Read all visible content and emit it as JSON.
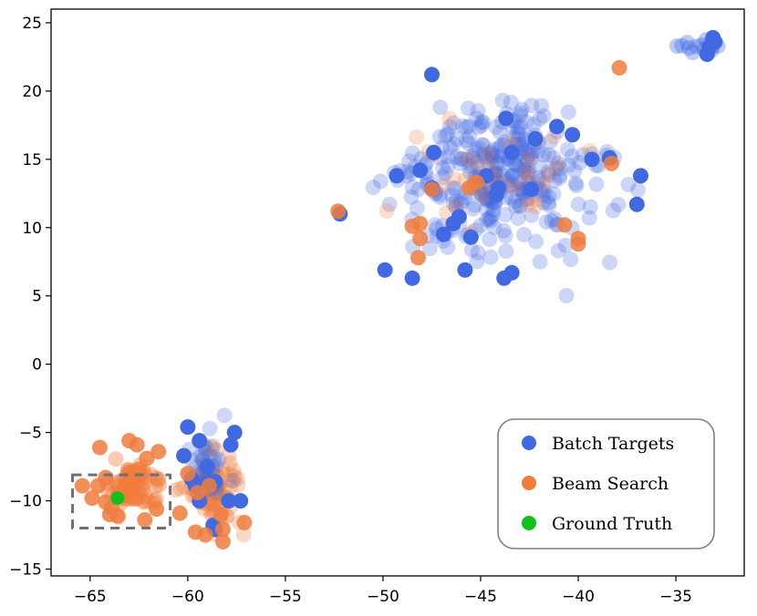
{
  "chart_data": {
    "type": "scatter",
    "xlim": [
      -67,
      -31.5
    ],
    "ylim": [
      -15.5,
      26
    ],
    "x_ticks": [
      -65,
      -60,
      -55,
      -50,
      -45,
      -40,
      -35
    ],
    "y_ticks": [
      -15,
      -10,
      -5,
      0,
      5,
      10,
      15,
      20,
      25
    ],
    "x_tick_labels": [
      "−65",
      "−60",
      "−55",
      "−50",
      "−45",
      "−40",
      "−35"
    ],
    "y_tick_labels": [
      "−15",
      "−10",
      "−5",
      "0",
      "5",
      "10",
      "15",
      "20",
      "25"
    ],
    "grid": false,
    "legend_position": "lower-right",
    "legend": [
      {
        "label": "Batch Targets",
        "color": "#4169e1"
      },
      {
        "label": "Beam Search",
        "color": "#f07d3e"
      },
      {
        "label": "Ground Truth",
        "color": "#11c11b"
      }
    ],
    "annotation": {
      "type": "dashed-box",
      "x": [
        -65.9,
        -60.9
      ],
      "y": [
        -12.0,
        -8.1
      ],
      "color": "#707070"
    },
    "series": [
      {
        "name": "Batch Targets",
        "color": "#4169e1",
        "points": [
          [
            -47.5,
            21.2
          ],
          [
            -47.4,
            15.5
          ],
          [
            -48.1,
            14.2
          ],
          [
            -49.3,
            13.8
          ],
          [
            -44.7,
            13.8
          ],
          [
            -43.7,
            18.0
          ],
          [
            -42.2,
            16.5
          ],
          [
            -41.1,
            17.4
          ],
          [
            -40.3,
            16.8
          ],
          [
            -39.3,
            15.0
          ],
          [
            -38.4,
            15.1
          ],
          [
            -43.4,
            15.5
          ],
          [
            -44.1,
            12.9
          ],
          [
            -44.2,
            12.4
          ],
          [
            -42.4,
            12.8
          ],
          [
            -47.5,
            12.9
          ],
          [
            -46.1,
            10.8
          ],
          [
            -46.4,
            10.3
          ],
          [
            -45.5,
            9.3
          ],
          [
            -46.9,
            9.5
          ],
          [
            -52.2,
            11.0
          ],
          [
            -49.9,
            6.9
          ],
          [
            -48.5,
            6.3
          ],
          [
            -45.8,
            6.9
          ],
          [
            -43.8,
            6.3
          ],
          [
            -43.4,
            6.7
          ],
          [
            -36.8,
            13.8
          ],
          [
            -37.0,
            11.7
          ],
          [
            -33.4,
            22.7
          ],
          [
            -33.3,
            23.2
          ],
          [
            -33.1,
            23.9
          ],
          [
            -33.0,
            23.6
          ],
          [
            -60.0,
            -4.6
          ],
          [
            -57.6,
            -5.0
          ],
          [
            -59.4,
            -5.6
          ],
          [
            -60.2,
            -6.7
          ],
          [
            -57.8,
            -5.9
          ],
          [
            -59.0,
            -7.5
          ],
          [
            -59.8,
            -8.4
          ],
          [
            -58.6,
            -8.6
          ],
          [
            -59.6,
            -8.9
          ],
          [
            -59.4,
            -10.0
          ],
          [
            -57.9,
            -10.0
          ],
          [
            -57.3,
            -10.0
          ],
          [
            -58.7,
            -11.8
          ],
          [
            -58.6,
            -12.1
          ]
        ]
      },
      {
        "name": "Beam Search",
        "color": "#f07d3e",
        "points": [
          [
            -64.5,
            -6.1
          ],
          [
            -63.0,
            -5.6
          ],
          [
            -62.6,
            -5.9
          ],
          [
            -61.5,
            -6.4
          ],
          [
            -62.1,
            -6.9
          ],
          [
            -62.5,
            -7.7
          ],
          [
            -63.0,
            -7.9
          ],
          [
            -64.2,
            -8.3
          ],
          [
            -65.4,
            -8.9
          ],
          [
            -64.9,
            -9.8
          ],
          [
            -64.2,
            -10.1
          ],
          [
            -63.9,
            -10.5
          ],
          [
            -64.0,
            -11.0
          ],
          [
            -63.6,
            -11.1
          ],
          [
            -61.6,
            -10.6
          ],
          [
            -62.2,
            -11.4
          ],
          [
            -63.3,
            -9.6
          ],
          [
            -64.6,
            -8.9
          ],
          [
            -60.4,
            -10.9
          ],
          [
            -59.6,
            -12.3
          ],
          [
            -59.1,
            -12.5
          ],
          [
            -58.2,
            -13.0
          ],
          [
            -58.2,
            -12.1
          ],
          [
            -57.1,
            -11.6
          ],
          [
            -58.3,
            -11.0
          ],
          [
            -59.5,
            -9.4
          ],
          [
            -58.9,
            -8.9
          ],
          [
            -60.0,
            -8.0
          ],
          [
            -52.3,
            11.2
          ],
          [
            -40.7,
            10.2
          ],
          [
            -40.0,
            9.2
          ],
          [
            -40.0,
            8.8
          ],
          [
            -38.3,
            14.7
          ],
          [
            -37.9,
            21.7
          ],
          [
            -48.5,
            10.1
          ],
          [
            -48.1,
            10.3
          ],
          [
            -48.1,
            9.2
          ],
          [
            -47.5,
            12.8
          ],
          [
            -48.2,
            7.8
          ],
          [
            -45.6,
            12.9
          ],
          [
            -45.2,
            13.3
          ]
        ]
      },
      {
        "name": "Ground Truth",
        "color": "#11c11b",
        "points": [
          [
            -63.6,
            -9.8
          ]
        ]
      }
    ]
  }
}
